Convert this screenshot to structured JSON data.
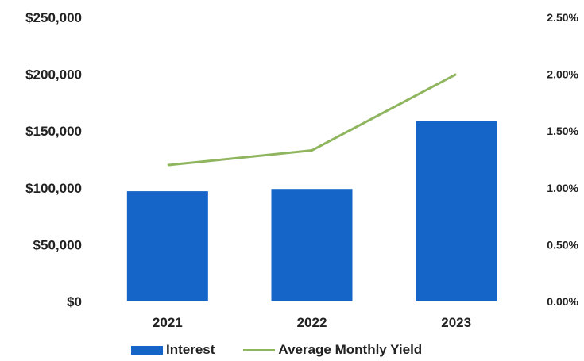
{
  "chart_data": {
    "type": "bar",
    "categories": [
      "2021",
      "2022",
      "2023"
    ],
    "series": [
      {
        "name": "Interest",
        "type": "bar",
        "axis": "left",
        "values": [
          97000,
          99000,
          159000
        ],
        "color": "#1565c8"
      },
      {
        "name": "Average Monthly Yield",
        "type": "line",
        "axis": "right",
        "values": [
          1.2,
          1.33,
          2.0
        ],
        "color": "#8fb55e"
      }
    ],
    "y_left": {
      "min": 0,
      "max": 250000,
      "ticks": [
        "$0",
        "$50,000",
        "$100,000",
        "$150,000",
        "$200,000",
        "$250,000"
      ]
    },
    "y_right": {
      "min": 0,
      "max": 2.5,
      "ticks": [
        "0.00%",
        "0.50%",
        "1.00%",
        "1.50%",
        "2.00%",
        "2.50%"
      ]
    },
    "grid": false,
    "legend_position": "bottom"
  }
}
